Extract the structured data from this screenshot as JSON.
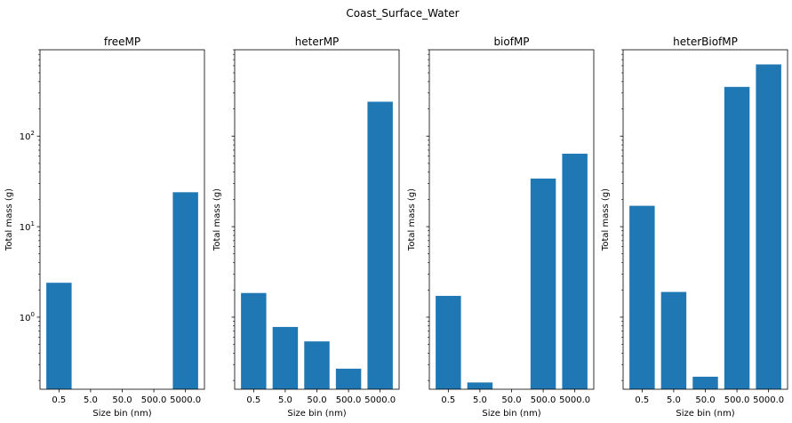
{
  "figure": {
    "suptitle": "Coast_Surface_Water"
  },
  "chart_data": [
    {
      "type": "bar",
      "title": "freeMP",
      "xlabel": "Size bin (nm)",
      "ylabel": "Total mass (g)",
      "yscale": "log",
      "ylim": [
        0.16,
        900
      ],
      "yticks": [
        1,
        10,
        100
      ],
      "ytick_labels": [
        "10^0",
        "10^1",
        "10^2"
      ],
      "show_ytick_labels": true,
      "categories": [
        "0.5",
        "5.0",
        "50.0",
        "500.0",
        "5000.0"
      ],
      "values": [
        2.4,
        null,
        null,
        null,
        24
      ],
      "color": "#1f77b4"
    },
    {
      "type": "bar",
      "title": "heterMP",
      "xlabel": "Size bin (nm)",
      "ylabel": "Total mass (g)",
      "yscale": "log",
      "ylim": [
        0.16,
        900
      ],
      "show_ytick_labels": false,
      "categories": [
        "0.5",
        "5.0",
        "50.0",
        "500.0",
        "5000.0"
      ],
      "values": [
        1.85,
        0.78,
        0.54,
        0.27,
        240
      ],
      "color": "#1f77b4"
    },
    {
      "type": "bar",
      "title": "biofMP",
      "xlabel": "Size bin (nm)",
      "ylabel": "Total mass (g)",
      "yscale": "log",
      "ylim": [
        0.16,
        900
      ],
      "show_ytick_labels": false,
      "categories": [
        "0.5",
        "5.0",
        "50.0",
        "500.0",
        "5000.0"
      ],
      "values": [
        1.72,
        0.19,
        null,
        34,
        64
      ],
      "color": "#1f77b4"
    },
    {
      "type": "bar",
      "title": "heterBiofMP",
      "xlabel": "Size bin (nm)",
      "ylabel": "Total mass (g)",
      "yscale": "log",
      "ylim": [
        0.16,
        900
      ],
      "show_ytick_labels": false,
      "categories": [
        "0.5",
        "5.0",
        "50.0",
        "500.0",
        "5000.0"
      ],
      "values": [
        17,
        1.9,
        0.22,
        350,
        620
      ],
      "color": "#1f77b4"
    }
  ]
}
